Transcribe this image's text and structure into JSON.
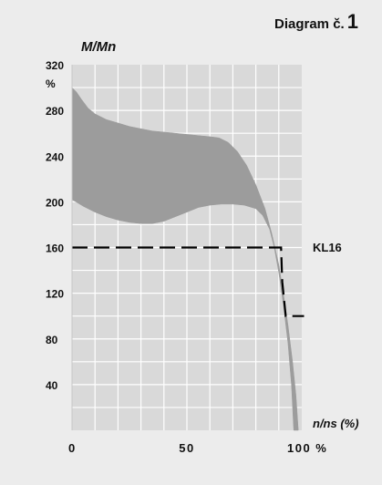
{
  "diagram_title": "Diagram č.",
  "diagram_number": "1",
  "chart_data": {
    "type": "area",
    "title": "Diagram č. 1",
    "ylabel": "M/Mn",
    "ylabel_unit": "%",
    "xlabel": "n/ns (%)",
    "xlim": [
      0,
      100
    ],
    "ylim": [
      0,
      320
    ],
    "grid": true,
    "x_ticks": [
      {
        "value": 0,
        "label": "0"
      },
      {
        "value": 50,
        "label": "50"
      },
      {
        "value": 100,
        "label": "100 %"
      }
    ],
    "y_ticks": [
      {
        "value": 320,
        "label": "320"
      },
      {
        "value": 280,
        "label": "280"
      },
      {
        "value": 240,
        "label": "240"
      },
      {
        "value": 200,
        "label": "200"
      },
      {
        "value": 160,
        "label": "160"
      },
      {
        "value": 120,
        "label": "120"
      },
      {
        "value": 80,
        "label": "80"
      },
      {
        "value": 40,
        "label": "40"
      }
    ],
    "band_upper": [
      {
        "x": 0,
        "y": 300
      },
      {
        "x": 2,
        "y": 296
      },
      {
        "x": 4,
        "y": 290
      },
      {
        "x": 7,
        "y": 282
      },
      {
        "x": 10,
        "y": 277
      },
      {
        "x": 15,
        "y": 272
      },
      {
        "x": 20,
        "y": 269
      },
      {
        "x": 25,
        "y": 266
      },
      {
        "x": 30,
        "y": 264
      },
      {
        "x": 35,
        "y": 262
      },
      {
        "x": 40,
        "y": 261
      },
      {
        "x": 45,
        "y": 260
      },
      {
        "x": 50,
        "y": 259
      },
      {
        "x": 55,
        "y": 258
      },
      {
        "x": 60,
        "y": 257
      },
      {
        "x": 64,
        "y": 256
      },
      {
        "x": 68,
        "y": 252
      },
      {
        "x": 72,
        "y": 244
      },
      {
        "x": 76,
        "y": 232
      },
      {
        "x": 80,
        "y": 215
      },
      {
        "x": 84,
        "y": 194
      },
      {
        "x": 87,
        "y": 172
      },
      {
        "x": 90,
        "y": 145
      },
      {
        "x": 92,
        "y": 120
      },
      {
        "x": 94,
        "y": 92
      },
      {
        "x": 96,
        "y": 60
      },
      {
        "x": 97.5,
        "y": 30
      },
      {
        "x": 98.5,
        "y": 0
      }
    ],
    "band_lower": [
      {
        "x": 0,
        "y": 202
      },
      {
        "x": 5,
        "y": 196
      },
      {
        "x": 10,
        "y": 191
      },
      {
        "x": 15,
        "y": 187
      },
      {
        "x": 20,
        "y": 184
      },
      {
        "x": 25,
        "y": 182
      },
      {
        "x": 30,
        "y": 181
      },
      {
        "x": 35,
        "y": 181
      },
      {
        "x": 40,
        "y": 183
      },
      {
        "x": 45,
        "y": 187
      },
      {
        "x": 50,
        "y": 191
      },
      {
        "x": 55,
        "y": 195
      },
      {
        "x": 60,
        "y": 197
      },
      {
        "x": 65,
        "y": 198
      },
      {
        "x": 70,
        "y": 198
      },
      {
        "x": 75,
        "y": 197
      },
      {
        "x": 80,
        "y": 194
      },
      {
        "x": 83,
        "y": 188
      },
      {
        "x": 86,
        "y": 176
      },
      {
        "x": 88,
        "y": 160
      },
      {
        "x": 90,
        "y": 138
      },
      {
        "x": 92,
        "y": 110
      },
      {
        "x": 94,
        "y": 76
      },
      {
        "x": 95.5,
        "y": 40
      },
      {
        "x": 96.5,
        "y": 0
      }
    ],
    "kl16": {
      "label": "KL16",
      "points": [
        {
          "x": 0,
          "y": 160
        },
        {
          "x": 91,
          "y": 160
        },
        {
          "x": 91.5,
          "y": 130
        },
        {
          "x": 93,
          "y": 100
        },
        {
          "x": 101,
          "y": 100
        }
      ]
    }
  }
}
